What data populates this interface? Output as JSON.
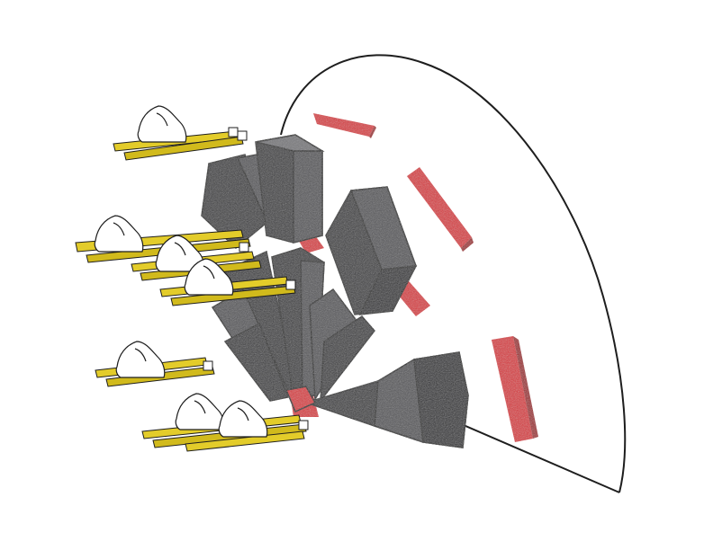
{
  "illustration": {
    "subject": "sketch",
    "colors": {
      "background": "#ffffff",
      "outline": "#1e1e1e",
      "block_dark": "#3b3b3d",
      "block_mid": "#555558",
      "block_light": "#77777a",
      "accent_red": "#d8363a",
      "shelf_yellow": "#e3cc2a",
      "shoe_white": "#ffffff"
    },
    "elements": {
      "arch_wall": 1,
      "red_lights": 5,
      "shelves": 5,
      "shoes": 7,
      "dark_blocks": 10
    }
  }
}
